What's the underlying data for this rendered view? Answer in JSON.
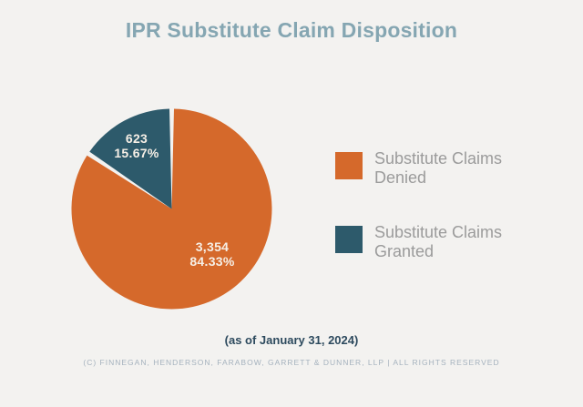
{
  "title": "IPR Substitute Claim Disposition",
  "chart_data": {
    "type": "pie",
    "title": "IPR Substitute Claim Disposition",
    "start_angle_deg": 0,
    "direction": "clockwise",
    "legend_position": "right",
    "slices": [
      {
        "label": "Substitute Claims Denied",
        "value": 3354,
        "pct": 84.33,
        "value_label": "3,354",
        "pct_label": "84.33%",
        "color": "#d5692b"
      },
      {
        "label": "Substitute Claims Granted",
        "value": 623,
        "pct": 15.67,
        "value_label": "623",
        "pct_label": "15.67%",
        "color": "#2d5a6b"
      }
    ]
  },
  "legend": {
    "items": [
      {
        "lines": [
          "Substitute Claims",
          "Denied"
        ],
        "color": "#d5692b"
      },
      {
        "lines": [
          "Substitute Claims",
          "Granted"
        ],
        "color": "#2d5a6b"
      }
    ]
  },
  "footer": {
    "as_of": "(as of January 31, 2024)",
    "copyright": "(C) FINNEGAN, HENDERSON, FARABOW, GARRETT & DUNNER, LLP | ALL RIGHTS RESERVED"
  },
  "colors": {
    "background": "#f3f2f0",
    "title": "#85a6b2",
    "legend_text": "#9b9b9b",
    "slice_label_text": "#f6efe6",
    "as_of_text": "#2d4a5e",
    "copyright_text": "#a5b2be"
  }
}
